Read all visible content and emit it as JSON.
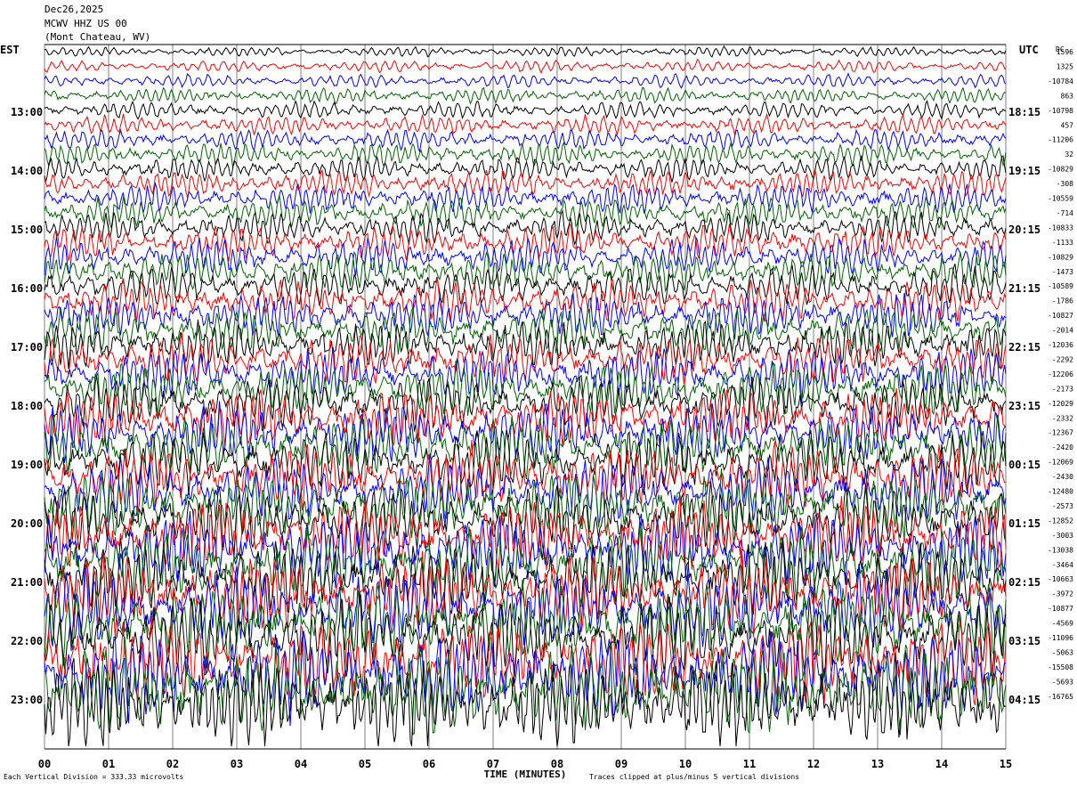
{
  "header": {
    "date": "Dec26,2025",
    "station": "MCWV HHZ US 00",
    "location": "(Mont Chateau, WV)"
  },
  "left_axis_label": "EST",
  "right_axis_label": "UTC",
  "dc_label": "DC",
  "footer": {
    "scale_note": "Each Vertical Division =  333.33 microvolts",
    "clip_note": "Traces clipped at plus/minus 5 vertical divisions"
  },
  "colors": {
    "trace_cycle": [
      "#000000",
      "#ff0000",
      "#0000ff",
      "#006400"
    ],
    "grid": "#808080",
    "frame": "#000000"
  },
  "chart_data": {
    "type": "line",
    "title": "",
    "xlabel": "TIME (MINUTES)",
    "ylabel": "",
    "x_ticks": [
      "00",
      "01",
      "02",
      "03",
      "04",
      "05",
      "06",
      "07",
      "08",
      "09",
      "10",
      "11",
      "12",
      "13",
      "14",
      "15"
    ],
    "xlim": [
      0,
      15
    ],
    "est_hour_labels": [
      "13:00",
      "14:00",
      "15:00",
      "16:00",
      "17:00",
      "18:00",
      "19:00",
      "20:00",
      "21:00",
      "22:00",
      "23:00"
    ],
    "utc_hour_labels": [
      "18:15",
      "19:15",
      "20:15",
      "21:15",
      "22:15",
      "23:15",
      "00:15",
      "01:15",
      "02:15",
      "03:15",
      "04:15"
    ],
    "trace_count": 45,
    "dc_offsets": [
      "1596",
      "1325",
      "-10784",
      "863",
      "-10798",
      "457",
      "-11206",
      "32",
      "-10829",
      "-308",
      "-10559",
      "-714",
      "-10833",
      "-1133",
      "-10829",
      "-1473",
      "-10589",
      "-1786",
      "-10827",
      "-2014",
      "-12036",
      "-2292",
      "-12206",
      "-2173",
      "-12029",
      "-2332",
      "-12367",
      "-2420",
      "-12069",
      "-2430",
      "-12480",
      "-2573",
      "-12852",
      "-3003",
      "-13038",
      "-3464",
      "-10663",
      "-3972",
      "-10877",
      "-4569",
      "-11096",
      "-5063",
      "-15508",
      "-5693",
      "-16765"
    ],
    "amplitude_trend": "low at top, increasing toward bottom, clipped at plus/minus 5 vertical divisions"
  }
}
